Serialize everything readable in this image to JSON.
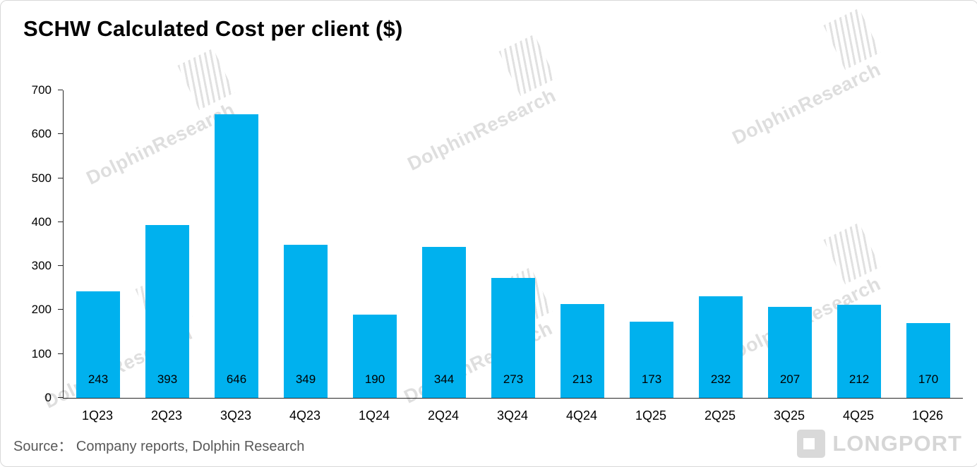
{
  "header": {
    "title": "SCHW Calculated Cost per client  ($)"
  },
  "footer": {
    "source": "Source：  Company reports, Dolphin Research",
    "logo_text": "LONGPORT"
  },
  "watermark": {
    "text": "DolphinResearch"
  },
  "chart_data": {
    "type": "bar",
    "title": "SCHW Calculated Cost per client ($)",
    "categories": [
      "1Q23",
      "2Q23",
      "3Q23",
      "4Q23",
      "1Q24",
      "2Q24",
      "3Q24",
      "4Q24",
      "1Q25",
      "2Q25",
      "3Q25",
      "4Q25",
      "1Q26"
    ],
    "values": [
      243,
      393,
      646,
      349,
      190,
      344,
      273,
      213,
      173,
      232,
      207,
      212,
      170
    ],
    "xlabel": "",
    "ylabel": "",
    "ylim": [
      0,
      700
    ],
    "yticks": [
      0,
      100,
      200,
      300,
      400,
      500,
      600,
      700
    ],
    "bar_color": "#00b1ee",
    "value_label_color": "#000000",
    "data_labels": "inside-bottom",
    "grid": false,
    "legend": "none"
  }
}
